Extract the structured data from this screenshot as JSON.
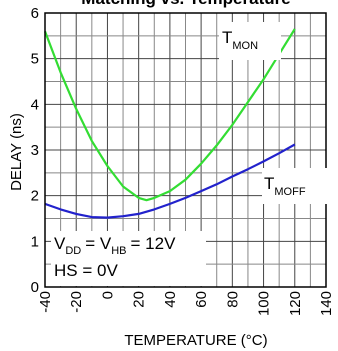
{
  "chart_data": {
    "type": "line",
    "title": "Matching vs. Temperature",
    "xlabel": "TEMPERATURE (°C)",
    "ylabel": "DELAY (ns)",
    "xlim": [
      -40,
      140
    ],
    "ylim": [
      0,
      6
    ],
    "x_ticks": [
      -40,
      -20,
      0,
      20,
      40,
      60,
      80,
      100,
      120,
      140
    ],
    "y_ticks": [
      0,
      1,
      2,
      3,
      4,
      5,
      6
    ],
    "grid": true,
    "series": [
      {
        "label_main": "T",
        "label_sub": "MON",
        "color": "#33dd33",
        "x": [
          -40,
          -30,
          -20,
          -10,
          0,
          10,
          20,
          25,
          30,
          40,
          50,
          60,
          70,
          80,
          90,
          100,
          110,
          120
        ],
        "y": [
          5.6,
          4.7,
          3.9,
          3.2,
          2.65,
          2.2,
          1.95,
          1.9,
          1.95,
          2.1,
          2.35,
          2.7,
          3.1,
          3.55,
          4.05,
          4.55,
          5.1,
          5.65
        ]
      },
      {
        "label_main": "T",
        "label_sub": "MOFF",
        "color": "#2222cc",
        "x": [
          -40,
          -30,
          -20,
          -10,
          0,
          10,
          20,
          30,
          40,
          50,
          60,
          70,
          80,
          90,
          100,
          110,
          120
        ],
        "y": [
          1.82,
          1.7,
          1.6,
          1.53,
          1.52,
          1.55,
          1.6,
          1.7,
          1.82,
          1.95,
          2.1,
          2.25,
          2.42,
          2.58,
          2.75,
          2.93,
          3.12
        ]
      }
    ],
    "annotations": {
      "vdd_main_1": "V",
      "vdd_sub_1": "DD",
      "vdd_main_2": "= V",
      "vdd_sub_2": "HB",
      "vdd_value": "= 12V",
      "hs": "HS = 0V"
    }
  }
}
